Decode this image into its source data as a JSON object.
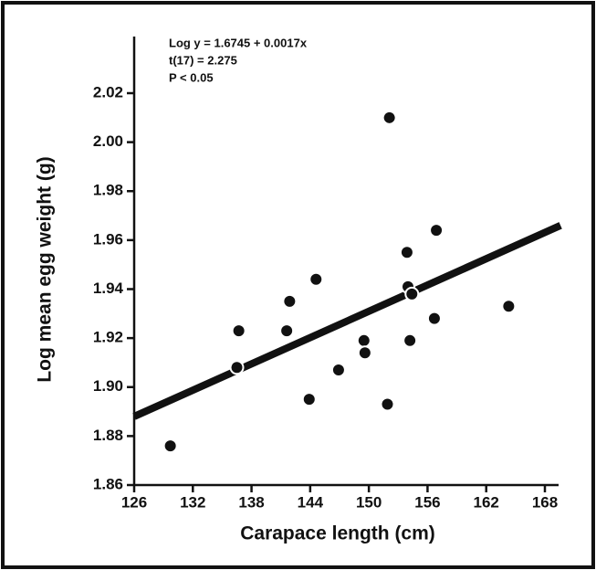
{
  "chart_data": {
    "type": "scatter",
    "annotations": [
      "Log y = 1.6745 + 0.0017x",
      "t(17) = 2.275",
      "P < 0.05"
    ],
    "x_label": "Carapace length (cm)",
    "y_label": "Log mean egg weight (g)",
    "x": [
      129.7,
      136.7,
      136.5,
      141.9,
      141.6,
      144.6,
      143.9,
      146.9,
      149.5,
      149.6,
      152.1,
      151.9,
      153.9,
      154.0,
      154.4,
      154.2,
      156.9,
      156.7,
      164.3
    ],
    "values": [
      1.876,
      1.923,
      1.908,
      1.935,
      1.923,
      1.944,
      1.895,
      1.907,
      1.919,
      1.914,
      2.01,
      1.893,
      1.955,
      1.941,
      1.938,
      1.919,
      1.964,
      1.928,
      1.933
    ],
    "color": "#111111",
    "regression": {
      "x": [
        126,
        169.6
      ],
      "y": [
        1.888,
        1.966
      ]
    },
    "xlim": [
      126,
      168
    ],
    "ylim": [
      1.86,
      2.02
    ],
    "xticks": [
      126,
      132,
      138,
      144,
      150,
      156,
      162,
      168
    ],
    "yticks": [
      1.86,
      1.88,
      {
        "value": 1.9,
        "label": "1.90"
      },
      1.92,
      1.94,
      1.96,
      1.98,
      {
        "value": 2,
        "label": "2.00"
      },
      2.02
    ]
  }
}
